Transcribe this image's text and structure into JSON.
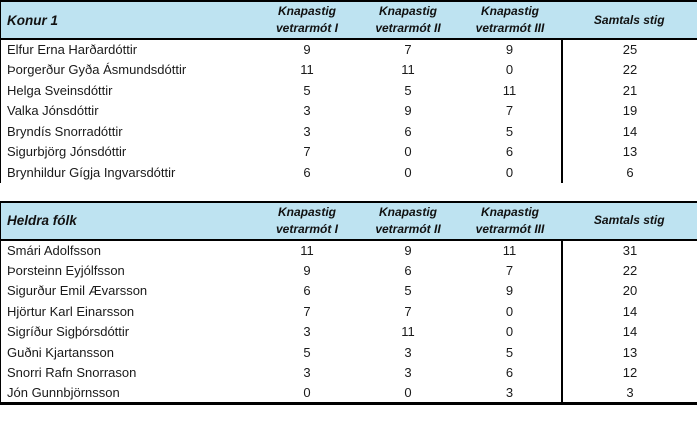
{
  "colors": {
    "header_bg": "#BEE3F1",
    "border": "#000000",
    "text": "#1A1A1A"
  },
  "tables": [
    {
      "title": "Konur 1",
      "columns": [
        "Knapastig vetrarmót I",
        "Knapastig vetrarmót II",
        "Knapastig vetrarmót III",
        "Samtals stig"
      ],
      "rows": [
        {
          "name": "Elfur Erna Harðardóttir",
          "scores": [
            "9",
            "7",
            "9"
          ],
          "total": "25"
        },
        {
          "name": "Þorgerður Gyða Ásmundsdóttir",
          "scores": [
            "11",
            "11",
            "0"
          ],
          "total": "22"
        },
        {
          "name": "Helga Sveinsdóttir",
          "scores": [
            "5",
            "5",
            "11"
          ],
          "total": "21"
        },
        {
          "name": "Valka Jónsdóttir",
          "scores": [
            "3",
            "9",
            "7"
          ],
          "total": "19"
        },
        {
          "name": "Bryndís Snorradóttir",
          "scores": [
            "3",
            "6",
            "5"
          ],
          "total": "14"
        },
        {
          "name": "Sigurbjörg Jónsdóttir",
          "scores": [
            "7",
            "0",
            "6"
          ],
          "total": "13"
        },
        {
          "name": "Brynhildur Gígja Ingvarsdóttir",
          "scores": [
            "6",
            "0",
            "0"
          ],
          "total": "6"
        }
      ]
    },
    {
      "title": "Heldra fólk",
      "columns": [
        "Knapastig vetrarmót I",
        "Knapastig vetrarmót II",
        "Knapastig vetrarmót III",
        "Samtals stig"
      ],
      "rows": [
        {
          "name": "Smári Adolfsson",
          "scores": [
            "11",
            "9",
            "11"
          ],
          "total": "31"
        },
        {
          "name": "Þorsteinn Eyjólfsson",
          "scores": [
            "9",
            "6",
            "7"
          ],
          "total": "22"
        },
        {
          "name": "Sigurður Emil Ævarsson",
          "scores": [
            "6",
            "5",
            "9"
          ],
          "total": "20"
        },
        {
          "name": "Hjörtur Karl Einarsson",
          "scores": [
            "7",
            "7",
            "0"
          ],
          "total": "14"
        },
        {
          "name": "Sigríður Sigþórsdóttir",
          "scores": [
            "3",
            "11",
            "0"
          ],
          "total": "14"
        },
        {
          "name": "Guðni Kjartansson",
          "scores": [
            "5",
            "3",
            "5"
          ],
          "total": "13"
        },
        {
          "name": "Snorri Rafn Snorrason",
          "scores": [
            "3",
            "3",
            "6"
          ],
          "total": "12"
        },
        {
          "name": "Jón Gunnbjörnsson",
          "scores": [
            "0",
            "0",
            "3"
          ],
          "total": "3"
        }
      ]
    }
  ]
}
